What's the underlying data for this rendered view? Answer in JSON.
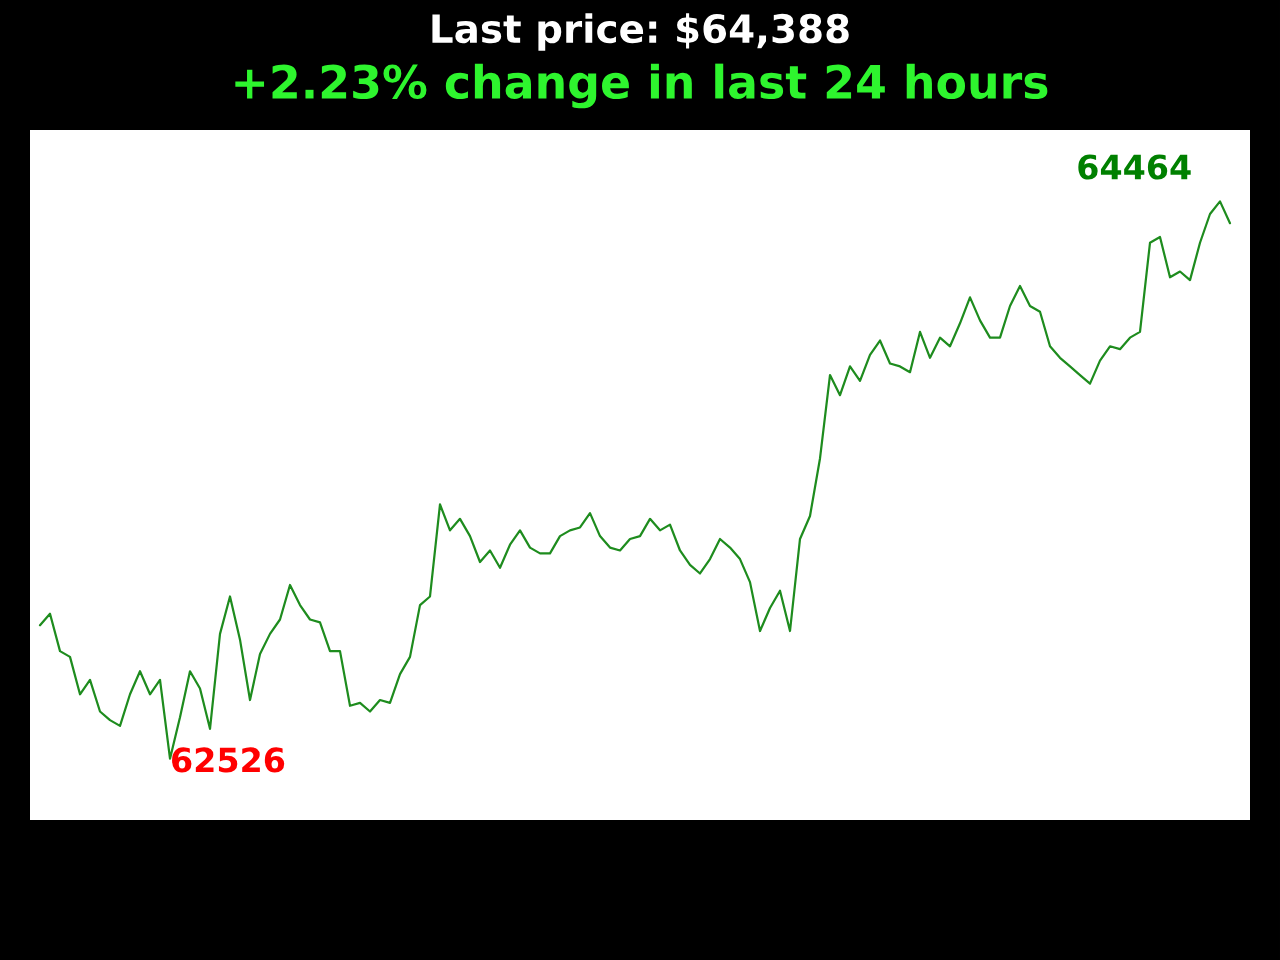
{
  "chart_data": {
    "type": "line",
    "title": "Last price: $64,388",
    "subtitle": "+2.23% change in last 24 hours",
    "categories": [
      null,
      null,
      null,
      null,
      null,
      null,
      null,
      null,
      null,
      null,
      null,
      null,
      null,
      null,
      null,
      null,
      null,
      null,
      null,
      null,
      null,
      null,
      null,
      null,
      null,
      null,
      null,
      null,
      null,
      null,
      null,
      null,
      null,
      null,
      null,
      null,
      null,
      null,
      null,
      null,
      null,
      null,
      null,
      null,
      null,
      null,
      null,
      null,
      null,
      null,
      null,
      null,
      null,
      null,
      null,
      null,
      null,
      null,
      null,
      null,
      null,
      null,
      null,
      null,
      null,
      null,
      null,
      null,
      null,
      null,
      null,
      null,
      null,
      null,
      null,
      null,
      null,
      null,
      null,
      null,
      null,
      null,
      null,
      null,
      null,
      null,
      null,
      null,
      null,
      null,
      null,
      null,
      null,
      null,
      null,
      null,
      null,
      null,
      null,
      null,
      null,
      null,
      null,
      null,
      null,
      null,
      null,
      null,
      null,
      null,
      null,
      null,
      null,
      null,
      null,
      null,
      null,
      null,
      null,
      null
    ],
    "series": [
      {
        "color": "#1e8c1e",
        "values": [
          62990,
          63030,
          62900,
          62880,
          62750,
          62800,
          62690,
          62660,
          62640,
          62750,
          62830,
          62750,
          62800,
          62526,
          62670,
          62830,
          62770,
          62630,
          62960,
          63090,
          62940,
          62730,
          62890,
          62960,
          63010,
          63130,
          63060,
          63010,
          63000,
          62900,
          62900,
          62710,
          62720,
          62690,
          62730,
          62720,
          62820,
          62880,
          63060,
          63090,
          63410,
          63320,
          63360,
          63300,
          63210,
          63250,
          63190,
          63270,
          63320,
          63260,
          63240,
          63240,
          63300,
          63320,
          63330,
          63380,
          63300,
          63260,
          63250,
          63290,
          63300,
          63360,
          63320,
          63340,
          63250,
          63200,
          63170,
          63220,
          63290,
          63260,
          63220,
          63140,
          62970,
          63050,
          63110,
          62970,
          63290,
          63370,
          63570,
          63860,
          63790,
          63890,
          63840,
          63930,
          63980,
          63900,
          63890,
          63870,
          64010,
          63920,
          63990,
          63960,
          64040,
          64130,
          64050,
          63990,
          63990,
          64100,
          64170,
          64100,
          64080,
          63960,
          63920,
          63890,
          63860,
          63830,
          63910,
          63960,
          63950,
          63990,
          64010,
          64320,
          64340,
          64200,
          64220,
          64190,
          64320,
          64420,
          64464,
          64388
        ],
        "value_labels": [
          null,
          null,
          null,
          null,
          null,
          null,
          null,
          null,
          null,
          null,
          null,
          null,
          null,
          "62526",
          null,
          null,
          null,
          null,
          null,
          null,
          null,
          null,
          null,
          null,
          null,
          null,
          null,
          null,
          null,
          null,
          null,
          null,
          null,
          null,
          null,
          null,
          null,
          null,
          null,
          null,
          null,
          null,
          null,
          null,
          null,
          null,
          null,
          null,
          null,
          null,
          null,
          null,
          null,
          null,
          null,
          null,
          null,
          null,
          null,
          null,
          null,
          null,
          null,
          null,
          null,
          null,
          null,
          null,
          null,
          null,
          null,
          null,
          null,
          null,
          null,
          null,
          null,
          null,
          null,
          null,
          null,
          null,
          null,
          null,
          null,
          null,
          null,
          null,
          null,
          null,
          null,
          null,
          null,
          null,
          null,
          null,
          null,
          null,
          null,
          null,
          null,
          null,
          null,
          null,
          null,
          null,
          null,
          null,
          null,
          null,
          null,
          null,
          null,
          null,
          null,
          null,
          null,
          null,
          "64464",
          null
        ]
      }
    ]
  }
}
